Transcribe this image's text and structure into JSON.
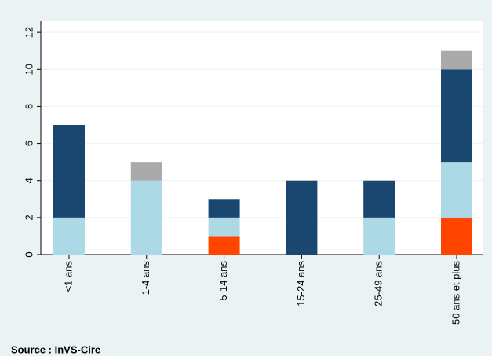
{
  "chart_data": {
    "type": "stacked-bar",
    "categories": [
      "<1 ans",
      "1-4 ans",
      "5-14 ans",
      "15-24 ans",
      "25-49 ans",
      "50 ans et plus"
    ],
    "series": [
      {
        "color": "#ff4500",
        "values": [
          0,
          0,
          1,
          0,
          0,
          2
        ]
      },
      {
        "color": "#add8e6",
        "values": [
          2,
          4,
          1,
          0,
          2,
          3
        ]
      },
      {
        "color": "#1a476f",
        "values": [
          5,
          0,
          1,
          4,
          2,
          5
        ]
      },
      {
        "color": "#aaaaaa",
        "values": [
          0,
          1,
          0,
          0,
          0,
          1
        ]
      }
    ],
    "ylim": [
      0,
      12.6
    ],
    "yticks": [
      0,
      2,
      4,
      6,
      8,
      10,
      12
    ],
    "grid": true,
    "source": "Source : InVS-Cire"
  }
}
